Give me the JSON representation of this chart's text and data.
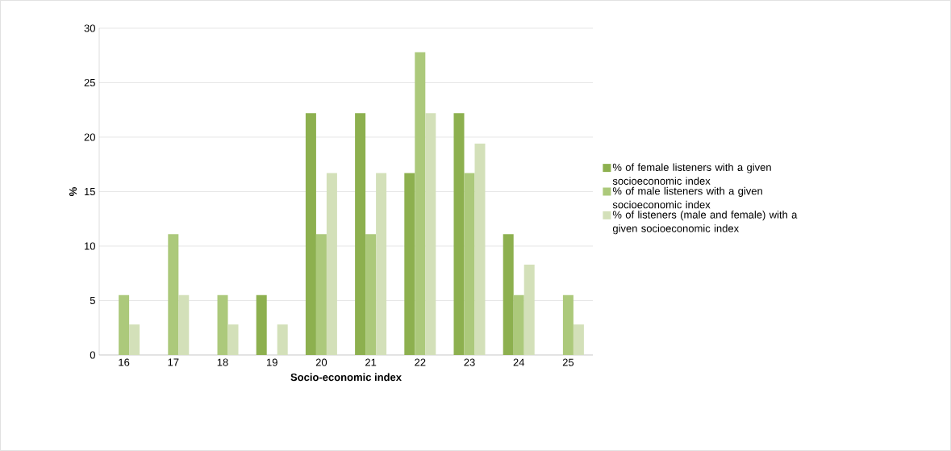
{
  "chart_data": {
    "type": "bar",
    "xlabel": "Socio-economic index",
    "ylabel": "%",
    "categories": [
      "16",
      "17",
      "18",
      "19",
      "20",
      "21",
      "22",
      "23",
      "24",
      "25"
    ],
    "series": [
      {
        "name": "% of female listeners with a given socioeconomic index",
        "color": "#8db04f",
        "values": [
          0,
          0,
          0,
          5.5,
          22.2,
          22.2,
          16.7,
          22.2,
          11.1,
          0
        ]
      },
      {
        "name": "% of male listeners with a given socioeconomic index",
        "color": "#acc97b",
        "values": [
          5.5,
          11.1,
          5.5,
          0,
          11.1,
          11.1,
          27.8,
          16.7,
          5.5,
          5.5
        ]
      },
      {
        "name": "% of  listeners (male and female) with a given socioeconomic index",
        "color": "#d3e0b9",
        "values": [
          2.8,
          5.5,
          2.8,
          2.8,
          16.7,
          16.7,
          22.2,
          19.4,
          8.3,
          2.8
        ]
      }
    ],
    "ylim": [
      0,
      30
    ],
    "yticks": [
      0,
      5,
      10,
      15,
      20,
      25,
      30
    ],
    "grid": "y",
    "legend": "right"
  }
}
